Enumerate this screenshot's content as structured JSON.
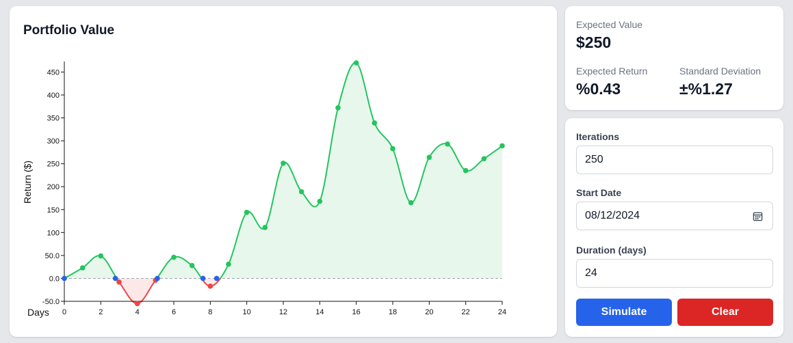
{
  "chart_card": {
    "title": "Portfolio Value"
  },
  "stats": {
    "expected_value_label": "Expected Value",
    "expected_value": "$250",
    "expected_return_label": "Expected Return",
    "expected_return": "%0.43",
    "std_dev_label": "Standard Deviation",
    "std_dev": "±%1.27"
  },
  "form": {
    "iterations_label": "Iterations",
    "iterations_value": "250",
    "start_date_label": "Start Date",
    "start_date_value": "08/12/2024",
    "duration_label": "Duration (days)",
    "duration_value": "24",
    "simulate_label": "Simulate",
    "clear_label": "Clear"
  },
  "colors": {
    "positive": "#22c55e",
    "negative": "#ef4444",
    "crossing": "#2563eb",
    "positive_fill": "#e8f7ec",
    "negative_fill": "#fde8e8",
    "simulate_button": "#2563eb",
    "clear_button": "#dc2626"
  },
  "chart_data": {
    "type": "area",
    "title": "Portfolio Value",
    "xlabel": "Days",
    "ylabel": "Return ($)",
    "xlim": [
      0,
      24
    ],
    "ylim": [
      -50,
      470
    ],
    "x_ticks": [
      0,
      2,
      4,
      6,
      8,
      10,
      12,
      14,
      16,
      18,
      20,
      22,
      24
    ],
    "y_ticks": [
      -50,
      0,
      50,
      100,
      150,
      200,
      250,
      300,
      350,
      400,
      450
    ],
    "y_tick_labels": [
      "-50.0",
      "0.0",
      "50.0",
      "100",
      "150",
      "200",
      "250",
      "300",
      "350",
      "400",
      "450"
    ],
    "baseline": 0,
    "grid": false,
    "x": [
      0,
      1,
      2,
      3,
      4,
      5,
      6,
      7,
      8,
      9,
      10,
      11,
      12,
      13,
      14,
      15,
      16,
      17,
      18,
      19,
      20,
      21,
      22,
      23,
      24
    ],
    "y": [
      0,
      23,
      49,
      -8,
      -55,
      -4,
      46,
      28,
      -17,
      31,
      144,
      111,
      251,
      189,
      168,
      372,
      470,
      339,
      283,
      165,
      264,
      293,
      235,
      261,
      289
    ],
    "zero_crossings": [
      0,
      2.8,
      5.1,
      7.6,
      8.35
    ]
  }
}
